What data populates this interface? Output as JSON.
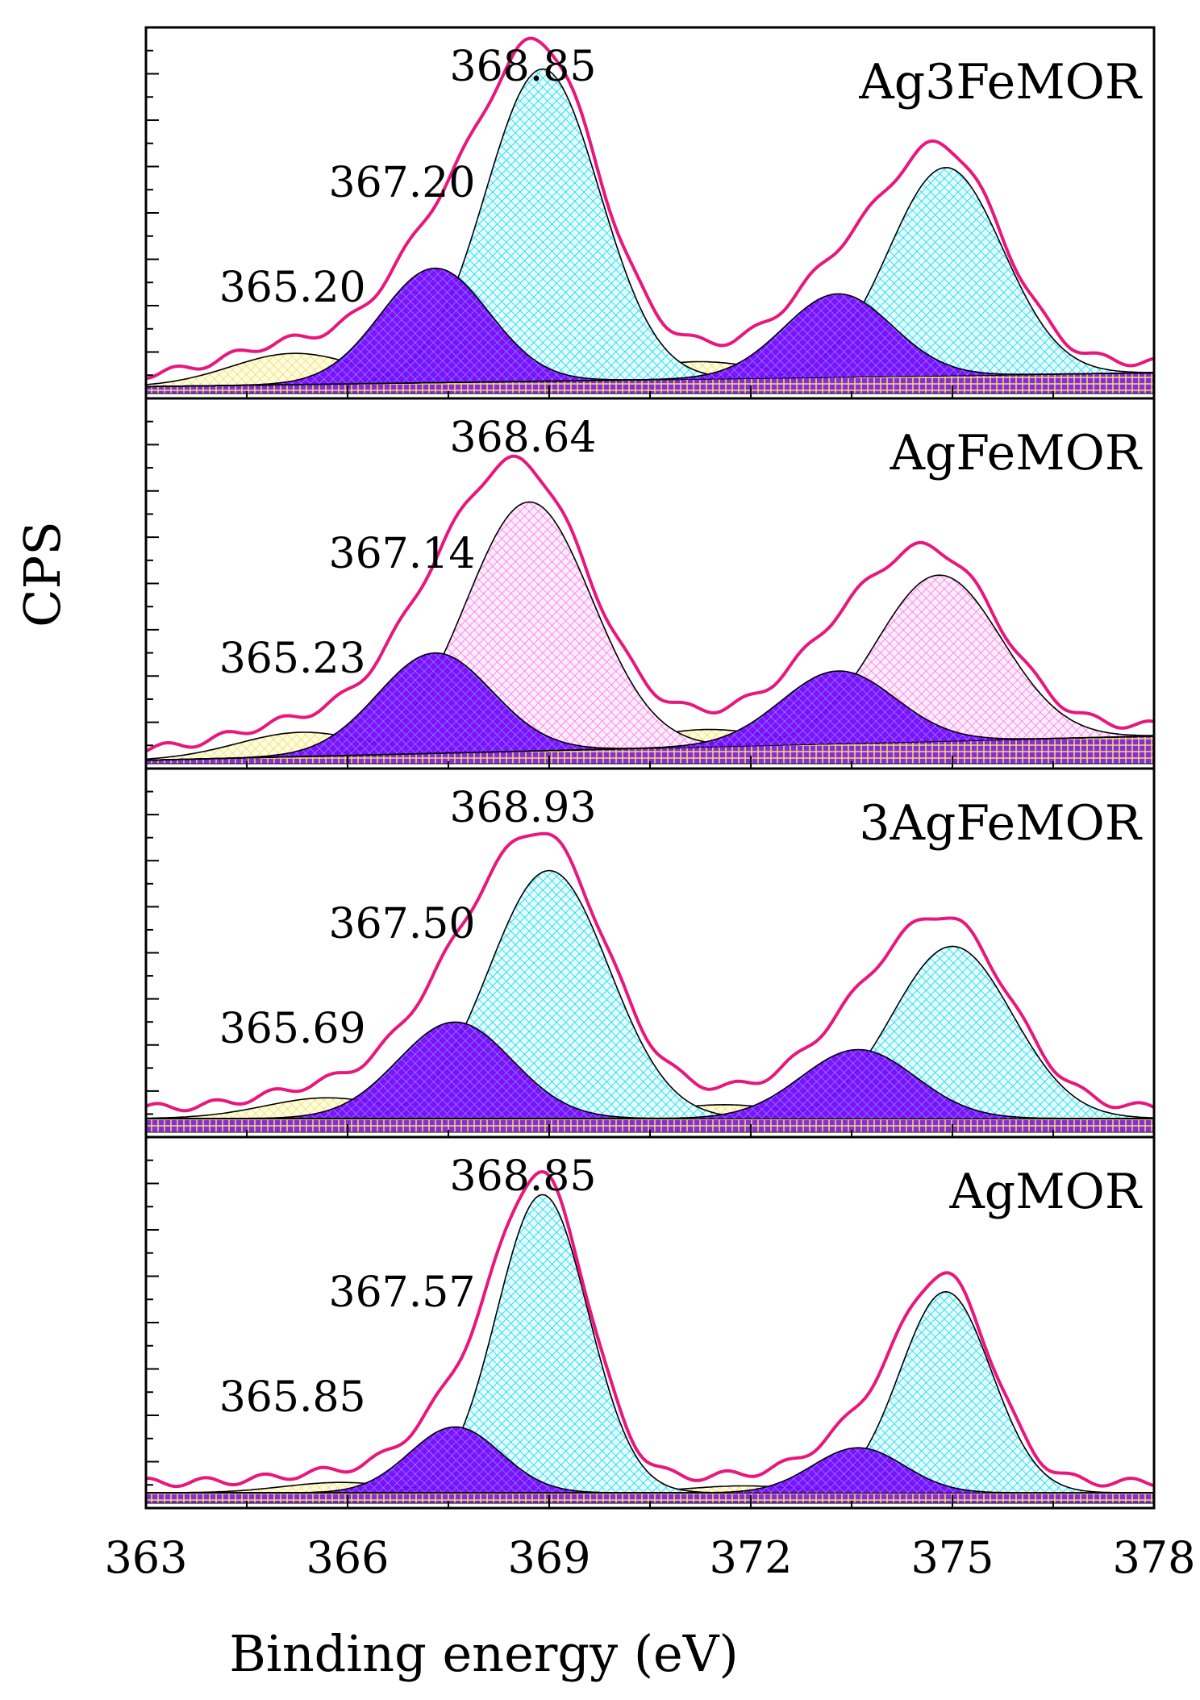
{
  "chart_data": {
    "type": "line",
    "xlabel": "Binding energy (eV)",
    "ylabel": "CPS",
    "xlim": [
      363,
      378
    ],
    "xticks": [
      363,
      366,
      369,
      372,
      375,
      378
    ],
    "xtick_labels": [
      "363",
      "366",
      "369",
      "372",
      "375",
      "378"
    ],
    "colors": {
      "envelope": "#e8177d",
      "component_fill": "#8000ff",
      "cyan_fill": "#00e5ff",
      "pink_fill": "#ff66e0",
      "yellow_fill": "#f2f0a0",
      "baseline_fill": "#8000ff"
    },
    "panels": [
      {
        "sample": "Ag3FeMOR",
        "peak_labels": [
          {
            "text": "368.85",
            "position": 368.85
          },
          {
            "text": "367.20",
            "position": 367.2
          },
          {
            "text": "365.20",
            "position": 365.2
          }
        ],
        "main_fill": "cyan",
        "components": [
          {
            "center": 368.9,
            "height": 0.9,
            "fwhm": 2.0,
            "fill": "main"
          },
          {
            "center": 367.3,
            "height": 0.33,
            "fwhm": 1.9,
            "fill": "purple"
          },
          {
            "center": 365.2,
            "height": 0.09,
            "fwhm": 2.2,
            "fill": "yellow"
          },
          {
            "center": 374.9,
            "height": 0.6,
            "fwhm": 2.0,
            "fill": "main"
          },
          {
            "center": 373.3,
            "height": 0.24,
            "fwhm": 1.9,
            "fill": "purple"
          },
          {
            "center": 371.2,
            "height": 0.05,
            "fwhm": 2.2,
            "fill": "yellow"
          }
        ],
        "baseline": [
          0.02,
          0.06
        ]
      },
      {
        "sample": "AgFeMOR",
        "peak_labels": [
          {
            "text": "368.64",
            "position": 368.64
          },
          {
            "text": "367.14",
            "position": 367.14
          },
          {
            "text": "365.23",
            "position": 365.23
          }
        ],
        "main_fill": "pink",
        "components": [
          {
            "center": 368.7,
            "height": 0.72,
            "fwhm": 2.2,
            "fill": "main"
          },
          {
            "center": 367.3,
            "height": 0.29,
            "fwhm": 2.0,
            "fill": "purple"
          },
          {
            "center": 365.3,
            "height": 0.07,
            "fwhm": 2.2,
            "fill": "yellow"
          },
          {
            "center": 374.8,
            "height": 0.48,
            "fwhm": 2.2,
            "fill": "main"
          },
          {
            "center": 373.3,
            "height": 0.21,
            "fwhm": 2.0,
            "fill": "purple"
          },
          {
            "center": 371.3,
            "height": 0.05,
            "fwhm": 2.2,
            "fill": "yellow"
          }
        ],
        "baseline": [
          0.01,
          0.08
        ]
      },
      {
        "sample": "3AgFeMOR",
        "peak_labels": [
          {
            "text": "368.93",
            "position": 368.93
          },
          {
            "text": "367.50",
            "position": 367.5
          },
          {
            "text": "365.69",
            "position": 365.69
          }
        ],
        "main_fill": "cyan",
        "components": [
          {
            "center": 369.0,
            "height": 0.72,
            "fwhm": 2.1,
            "fill": "main"
          },
          {
            "center": 367.6,
            "height": 0.28,
            "fwhm": 2.0,
            "fill": "purple"
          },
          {
            "center": 365.7,
            "height": 0.06,
            "fwhm": 2.2,
            "fill": "yellow"
          },
          {
            "center": 375.0,
            "height": 0.5,
            "fwhm": 2.1,
            "fill": "main"
          },
          {
            "center": 373.6,
            "height": 0.2,
            "fwhm": 2.0,
            "fill": "purple"
          },
          {
            "center": 371.6,
            "height": 0.04,
            "fwhm": 2.2,
            "fill": "yellow"
          }
        ],
        "baseline": [
          0.04,
          0.04
        ]
      },
      {
        "sample": "AgMOR",
        "peak_labels": [
          {
            "text": "368.85",
            "position": 368.85
          },
          {
            "text": "367.57",
            "position": 367.57
          },
          {
            "text": "365.85",
            "position": 365.85
          }
        ],
        "main_fill": "cyan",
        "components": [
          {
            "center": 368.9,
            "height": 0.86,
            "fwhm": 1.6,
            "fill": "main"
          },
          {
            "center": 367.6,
            "height": 0.19,
            "fwhm": 1.6,
            "fill": "purple"
          },
          {
            "center": 365.9,
            "height": 0.03,
            "fwhm": 2.0,
            "fill": "yellow"
          },
          {
            "center": 374.9,
            "height": 0.58,
            "fwhm": 1.6,
            "fill": "main"
          },
          {
            "center": 373.6,
            "height": 0.13,
            "fwhm": 1.6,
            "fill": "purple"
          },
          {
            "center": 371.9,
            "height": 0.02,
            "fwhm": 2.0,
            "fill": "yellow"
          }
        ],
        "baseline": [
          0.03,
          0.03
        ]
      }
    ]
  }
}
